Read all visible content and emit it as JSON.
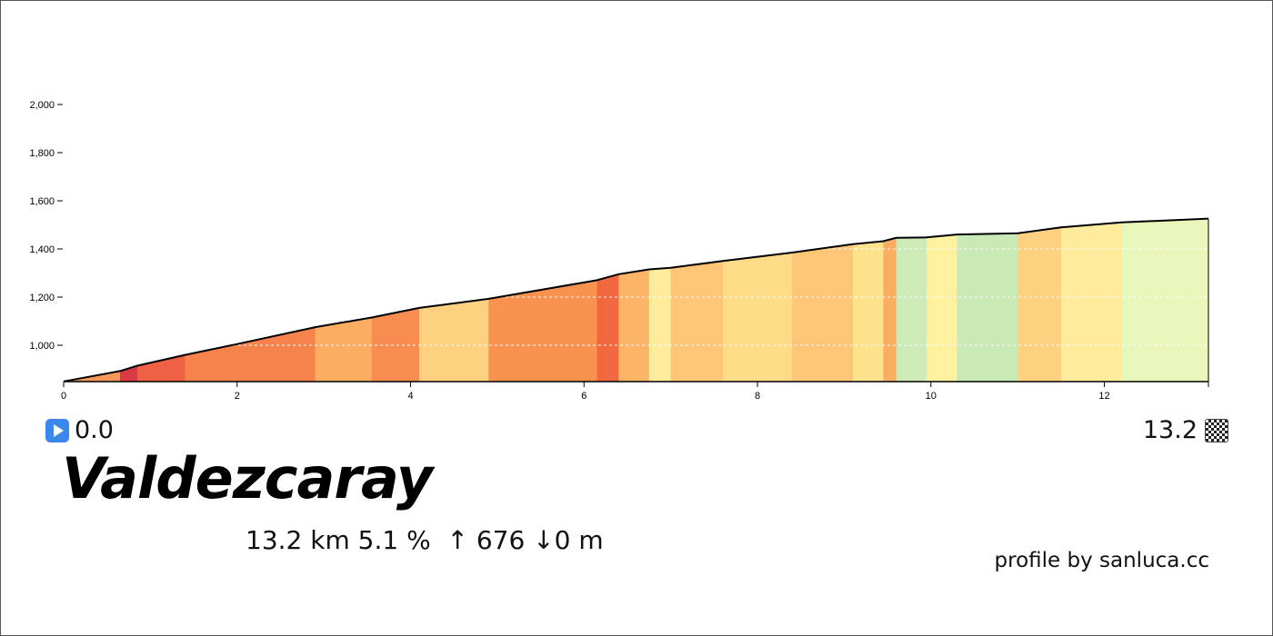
{
  "chart_data": {
    "type": "area",
    "title": "Valdezcaray",
    "xlabel": "",
    "ylabel": "",
    "xlim": [
      0,
      13.2
    ],
    "ylim": [
      850,
      2050
    ],
    "x_ticks": [
      0,
      2,
      4,
      6,
      8,
      10,
      12
    ],
    "y_ticks": [
      1000,
      1200,
      1400,
      1600,
      1800,
      2000
    ],
    "y_tick_labels": [
      "1,000",
      "1,200",
      "1,400",
      "1,600",
      "1,800",
      "2,000"
    ],
    "grid": "horizontal-dashed",
    "profile": {
      "x": [
        0,
        0.65,
        0.85,
        1.4,
        2.0,
        2.9,
        3.55,
        4.1,
        4.9,
        6.15,
        6.4,
        6.75,
        7.0,
        7.6,
        8.4,
        9.1,
        9.45,
        9.6,
        9.95,
        10.3,
        11.0,
        11.5,
        12.2,
        13.2
      ],
      "y": [
        850,
        893,
        915,
        960,
        1005,
        1075,
        1115,
        1155,
        1193,
        1270,
        1295,
        1315,
        1322,
        1350,
        1385,
        1420,
        1432,
        1446,
        1448,
        1460,
        1465,
        1490,
        1510,
        1526
      ]
    },
    "segments": [
      {
        "from": 0,
        "to": 0.65,
        "color": "#f99756"
      },
      {
        "from": 0.65,
        "to": 0.85,
        "color": "#d83b45"
      },
      {
        "from": 0.85,
        "to": 1.4,
        "color": "#ee6243"
      },
      {
        "from": 1.4,
        "to": 2.9,
        "color": "#f7834c"
      },
      {
        "from": 2.9,
        "to": 3.55,
        "color": "#fbad62"
      },
      {
        "from": 3.55,
        "to": 4.1,
        "color": "#f98c50"
      },
      {
        "from": 4.1,
        "to": 4.9,
        "color": "#fdd17f"
      },
      {
        "from": 4.9,
        "to": 6.15,
        "color": "#f9924f"
      },
      {
        "from": 6.15,
        "to": 6.4,
        "color": "#f16840"
      },
      {
        "from": 6.4,
        "to": 6.75,
        "color": "#fcb466"
      },
      {
        "from": 6.75,
        "to": 7.0,
        "color": "#feeb9c"
      },
      {
        "from": 7.0,
        "to": 7.6,
        "color": "#fdc676"
      },
      {
        "from": 7.6,
        "to": 8.4,
        "color": "#fedb86"
      },
      {
        "from": 8.4,
        "to": 9.1,
        "color": "#fdc676"
      },
      {
        "from": 9.1,
        "to": 9.45,
        "color": "#fee18b"
      },
      {
        "from": 9.45,
        "to": 9.6,
        "color": "#fbad62"
      },
      {
        "from": 9.6,
        "to": 9.95,
        "color": "#cdeab9"
      },
      {
        "from": 9.95,
        "to": 10.3,
        "color": "#fff09e"
      },
      {
        "from": 10.3,
        "to": 11.0,
        "color": "#c9e9b7"
      },
      {
        "from": 11.0,
        "to": 11.5,
        "color": "#fdd17f"
      },
      {
        "from": 11.5,
        "to": 12.2,
        "color": "#ffeb9c"
      },
      {
        "from": 12.2,
        "to": 13.2,
        "color": "#e9f6b9"
      }
    ]
  },
  "markers": {
    "start_value": "0.0",
    "end_value": "13.2",
    "start_icon": "play-button-icon",
    "end_icon": "checkered-flag-icon",
    "start_icon_color": "#3b88ec"
  },
  "summary": {
    "text": "13.2 km 5.1 %  ↑ 676 ↓0 m"
  },
  "credit": "profile by sanluca.cc",
  "colors": {
    "outline": "#000000",
    "grid": "#ffffff"
  }
}
